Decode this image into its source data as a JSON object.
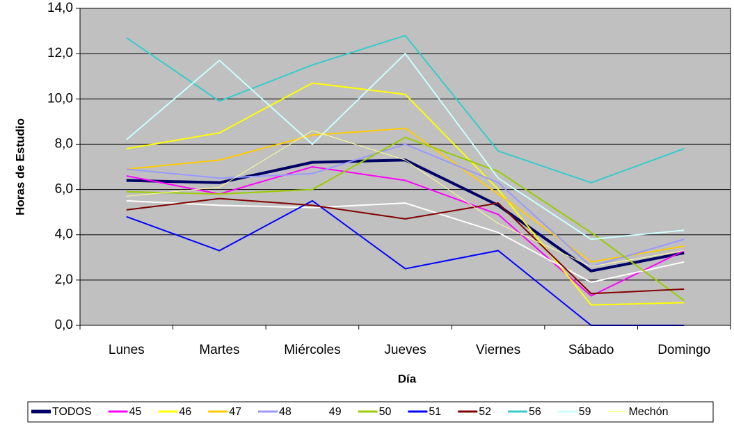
{
  "chart_data": {
    "type": "line",
    "x_label": "Día",
    "y_label": "Horas de Estudio",
    "categories": [
      "Lunes",
      "Martes",
      "Miércoles",
      "Jueves",
      "Viernes",
      "Sábado",
      "Domingo"
    ],
    "ylim": [
      0,
      14
    ],
    "yticks": [
      {
        "value": 0,
        "label": "0,0"
      },
      {
        "value": 2,
        "label": "2,0"
      },
      {
        "value": 4,
        "label": "4,0"
      },
      {
        "value": 6,
        "label": "6,0"
      },
      {
        "value": 8,
        "label": "8,0"
      },
      {
        "value": 10,
        "label": "10,0"
      },
      {
        "value": 12,
        "label": "12,0"
      },
      {
        "value": 14,
        "label": "14,0"
      }
    ],
    "grid": true,
    "legend": "bottom",
    "background": "#c0c0c0",
    "series": [
      {
        "name": "TODOS",
        "color": "#000066",
        "line_width": 4,
        "values": [
          6.4,
          6.3,
          7.2,
          7.3,
          5.3,
          2.4,
          3.2
        ]
      },
      {
        "name": "45",
        "color": "#ff00ff",
        "line_width": 2,
        "values": [
          6.6,
          5.8,
          7.0,
          6.4,
          4.9,
          1.3,
          3.3
        ]
      },
      {
        "name": "46",
        "color": "#ffff00",
        "line_width": 2,
        "values": [
          7.8,
          8.5,
          10.7,
          10.2,
          6.0,
          0.9,
          1.0
        ]
      },
      {
        "name": "47",
        "color": "#ffcc00",
        "line_width": 2,
        "values": [
          6.9,
          7.3,
          8.4,
          8.7,
          5.8,
          2.8,
          3.5
        ]
      },
      {
        "name": "48",
        "color": "#9999ff",
        "line_width": 2,
        "values": [
          6.9,
          6.5,
          6.7,
          8.0,
          6.3,
          2.6,
          3.8
        ]
      },
      {
        "name": "49",
        "color": "#ffffff",
        "line_width": 2,
        "values": [
          5.5,
          5.3,
          5.2,
          5.4,
          4.1,
          1.9,
          2.8
        ]
      },
      {
        "name": "50",
        "color": "#99cc00",
        "line_width": 2,
        "values": [
          5.9,
          5.8,
          6.0,
          8.3,
          6.8,
          4.1,
          1.1
        ]
      },
      {
        "name": "51",
        "color": "#0000ff",
        "line_width": 2,
        "values": [
          4.8,
          3.3,
          5.5,
          2.5,
          3.3,
          0.0,
          0.0
        ]
      },
      {
        "name": "52",
        "color": "#800000",
        "line_width": 2,
        "values": [
          5.1,
          5.6,
          5.3,
          4.7,
          5.4,
          1.4,
          1.6
        ]
      },
      {
        "name": "56",
        "color": "#33cccc",
        "line_width": 2,
        "values": [
          12.7,
          9.9,
          11.5,
          12.8,
          7.7,
          6.3,
          7.8
        ]
      },
      {
        "name": "59",
        "color": "#ccffff",
        "line_width": 2,
        "values": [
          8.2,
          11.7,
          8.0,
          12.0,
          6.5,
          3.8,
          4.2
        ]
      },
      {
        "name": "Mechón",
        "color": "#ffff99",
        "line_width": 1,
        "values": [
          5.7,
          6.1,
          8.6,
          7.3,
          4.5,
          2.6,
          3.3
        ]
      }
    ]
  }
}
